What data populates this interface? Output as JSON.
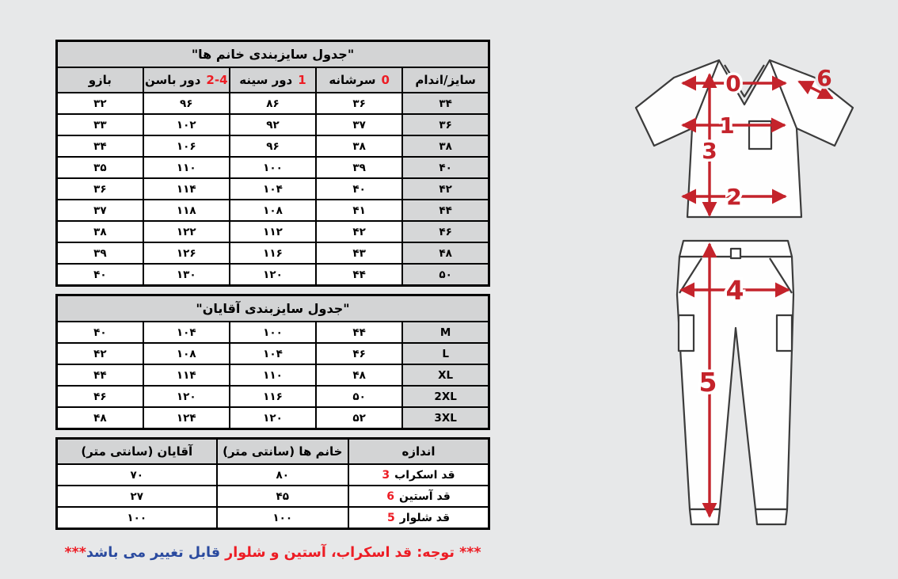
{
  "colors": {
    "background": "#e7e8e9",
    "header_bg": "#d3d4d5",
    "size_col_bg": "#d6d7d8",
    "border": "#000000",
    "red_accent": "#ed1c24",
    "blue_accent": "#2a4a9f",
    "diagram_red": "#c4232b",
    "diagram_outline": "#3b3b3b"
  },
  "women_table": {
    "title": "\"جدول سایزبندی خانم ها\"",
    "columns": [
      {
        "label": "بازو",
        "num": ""
      },
      {
        "label": "دور باسن",
        "num": "2-4"
      },
      {
        "label": "دور سینه",
        "num": "1"
      },
      {
        "label": "سرشانه",
        "num": "0"
      },
      {
        "label": "سایز/اندام",
        "num": ""
      }
    ],
    "rows": [
      [
        "۳۲",
        "۹۶",
        "۸۶",
        "۳۶",
        "۳۴"
      ],
      [
        "۳۳",
        "۱۰۲",
        "۹۲",
        "۳۷",
        "۳۶"
      ],
      [
        "۳۴",
        "۱۰۶",
        "۹۶",
        "۳۸",
        "۳۸"
      ],
      [
        "۳۵",
        "۱۱۰",
        "۱۰۰",
        "۳۹",
        "۴۰"
      ],
      [
        "۳۶",
        "۱۱۴",
        "۱۰۴",
        "۴۰",
        "۴۲"
      ],
      [
        "۳۷",
        "۱۱۸",
        "۱۰۸",
        "۴۱",
        "۴۴"
      ],
      [
        "۳۸",
        "۱۲۲",
        "۱۱۲",
        "۴۲",
        "۴۶"
      ],
      [
        "۳۹",
        "۱۲۶",
        "۱۱۶",
        "۴۳",
        "۴۸"
      ],
      [
        "۴۰",
        "۱۳۰",
        "۱۲۰",
        "۴۴",
        "۵۰"
      ]
    ]
  },
  "men_table": {
    "title": "\"جدول سایزبندی آقایان\"",
    "rows": [
      [
        "۴۰",
        "۱۰۴",
        "۱۰۰",
        "۴۴",
        "M"
      ],
      [
        "۴۲",
        "۱۰۸",
        "۱۰۴",
        "۴۶",
        "L"
      ],
      [
        "۴۴",
        "۱۱۴",
        "۱۱۰",
        "۴۸",
        "XL"
      ],
      [
        "۴۶",
        "۱۲۰",
        "۱۱۶",
        "۵۰",
        "2XL"
      ],
      [
        "۴۸",
        "۱۲۴",
        "۱۲۰",
        "۵۲",
        "3XL"
      ]
    ]
  },
  "measure_table": {
    "headers": [
      "آقایان (سانتی متر)",
      "خانم ها (سانتی متر)",
      "اندازه"
    ],
    "rows": [
      {
        "men": "۷۰",
        "women": "۸۰",
        "num": "3",
        "label": "قد اسکراب"
      },
      {
        "men": "۲۷",
        "women": "۴۵",
        "num": "6",
        "label": "قد آستین"
      },
      {
        "men": "۱۰۰",
        "women": "۱۰۰",
        "num": "5",
        "label": "قد شلوار"
      }
    ]
  },
  "note": {
    "part1": "*** توجه: قد اسکراب، آستین و شلوار",
    "part2": "قابل تغییر می باشد",
    "part3": "***"
  },
  "diagram": {
    "labels": {
      "shoulder": "0",
      "chest": "1",
      "hem": "2",
      "top_length": "3",
      "hip": "4",
      "pants_length": "5",
      "sleeve": "6"
    }
  }
}
